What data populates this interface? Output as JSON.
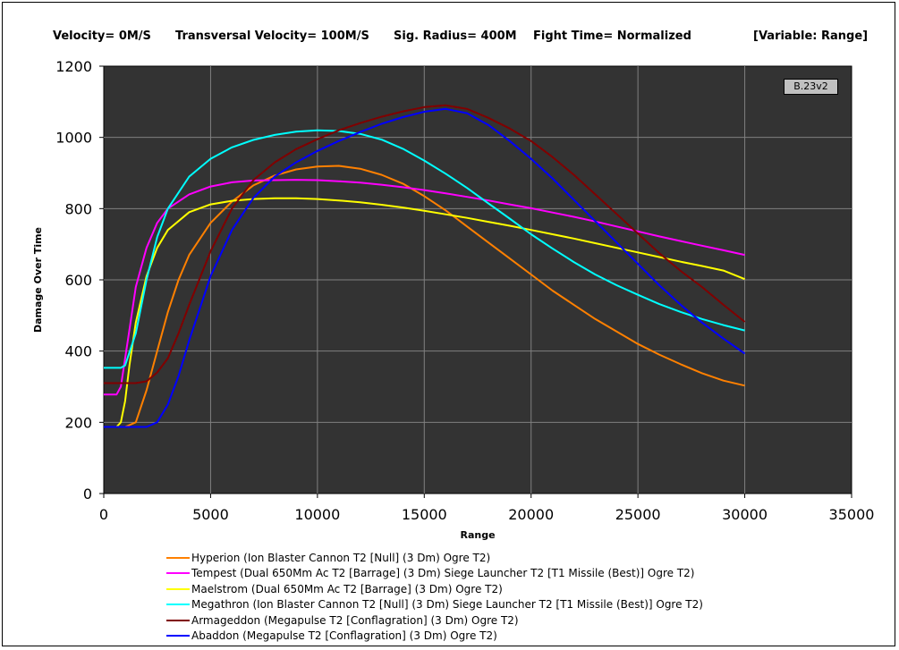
{
  "header": {
    "velocity": "Velocity= 0M/S",
    "transversal": "Transversal Velocity= 100M/S",
    "sig_radius": "Sig. Radius= 400M",
    "fight_time": "Fight Time= Normalized",
    "variable": "[Variable: Range]"
  },
  "version_badge": "B.23v2",
  "chart_data": {
    "type": "line",
    "title": "",
    "xlabel": "Range",
    "ylabel": "Damage Over Time",
    "xlim": [
      0,
      35000
    ],
    "ylim": [
      0,
      1200
    ],
    "x_ticks": [
      "0",
      "5000",
      "10000",
      "15000",
      "20000",
      "25000",
      "30000",
      "35000"
    ],
    "y_ticks": [
      "0",
      "200",
      "400",
      "600",
      "800",
      "1000",
      "1200"
    ],
    "grid": true,
    "plot_background": "#333333",
    "legend_position": "bottom",
    "series": [
      {
        "name": "Hyperion (Ion Blaster Cannon T2 [Null] (3 Dm) Ogre T2)",
        "color": "#ff8000",
        "points": [
          [
            0,
            187
          ],
          [
            1000,
            187
          ],
          [
            1500,
            200
          ],
          [
            2000,
            290
          ],
          [
            2500,
            400
          ],
          [
            3000,
            510
          ],
          [
            3500,
            600
          ],
          [
            4000,
            670
          ],
          [
            5000,
            760
          ],
          [
            6000,
            820
          ],
          [
            7000,
            865
          ],
          [
            8000,
            893
          ],
          [
            9000,
            910
          ],
          [
            10000,
            918
          ],
          [
            11000,
            920
          ],
          [
            12000,
            912
          ],
          [
            13000,
            895
          ],
          [
            14000,
            870
          ],
          [
            15000,
            835
          ],
          [
            16000,
            795
          ],
          [
            17000,
            750
          ],
          [
            18000,
            705
          ],
          [
            19000,
            660
          ],
          [
            20000,
            615
          ],
          [
            21000,
            570
          ],
          [
            22000,
            530
          ],
          [
            23000,
            490
          ],
          [
            24000,
            455
          ],
          [
            25000,
            420
          ],
          [
            26000,
            390
          ],
          [
            27000,
            363
          ],
          [
            28000,
            338
          ],
          [
            29000,
            317
          ],
          [
            30000,
            303
          ]
        ]
      },
      {
        "name": "Tempest (Dual 650Mm Ac T2 [Barrage] (3 Dm) Siege Launcher T2 [T1 Missile (Best)] Ogre T2)",
        "color": "#ff00ff",
        "points": [
          [
            0,
            278
          ],
          [
            600,
            278
          ],
          [
            800,
            300
          ],
          [
            1000,
            380
          ],
          [
            1200,
            460
          ],
          [
            1500,
            580
          ],
          [
            2000,
            690
          ],
          [
            2500,
            760
          ],
          [
            3000,
            800
          ],
          [
            4000,
            840
          ],
          [
            5000,
            862
          ],
          [
            6000,
            874
          ],
          [
            7000,
            879
          ],
          [
            8000,
            880
          ],
          [
            9000,
            881
          ],
          [
            10000,
            880
          ],
          [
            11000,
            877
          ],
          [
            12000,
            873
          ],
          [
            13000,
            867
          ],
          [
            14000,
            860
          ],
          [
            15000,
            852
          ],
          [
            16000,
            843
          ],
          [
            17000,
            833
          ],
          [
            18000,
            823
          ],
          [
            19000,
            812
          ],
          [
            20000,
            801
          ],
          [
            21000,
            789
          ],
          [
            22000,
            777
          ],
          [
            23000,
            764
          ],
          [
            24000,
            750
          ],
          [
            25000,
            736
          ],
          [
            26000,
            722
          ],
          [
            27000,
            709
          ],
          [
            28000,
            696
          ],
          [
            29000,
            683
          ],
          [
            30000,
            670
          ]
        ]
      },
      {
        "name": "Maelstrom (Dual 650Mm Ac T2 [Barrage] (3 Dm) Ogre T2)",
        "color": "#ffff00",
        "points": [
          [
            0,
            187
          ],
          [
            600,
            187
          ],
          [
            800,
            200
          ],
          [
            1000,
            260
          ],
          [
            1200,
            360
          ],
          [
            1500,
            480
          ],
          [
            2000,
            610
          ],
          [
            2500,
            690
          ],
          [
            3000,
            740
          ],
          [
            4000,
            790
          ],
          [
            5000,
            812
          ],
          [
            6000,
            822
          ],
          [
            7000,
            827
          ],
          [
            8000,
            829
          ],
          [
            9000,
            829
          ],
          [
            10000,
            827
          ],
          [
            11000,
            823
          ],
          [
            12000,
            818
          ],
          [
            13000,
            811
          ],
          [
            14000,
            803
          ],
          [
            15000,
            794
          ],
          [
            16000,
            784
          ],
          [
            17000,
            774
          ],
          [
            18000,
            763
          ],
          [
            19000,
            752
          ],
          [
            20000,
            740
          ],
          [
            21000,
            728
          ],
          [
            22000,
            716
          ],
          [
            23000,
            703
          ],
          [
            24000,
            690
          ],
          [
            25000,
            677
          ],
          [
            26000,
            664
          ],
          [
            27000,
            651
          ],
          [
            28000,
            639
          ],
          [
            29000,
            626
          ],
          [
            30000,
            602
          ]
        ]
      },
      {
        "name": "Megathron (Ion Blaster Cannon T2 [Null] (3 Dm) Siege Launcher T2 [T1 Missile (Best)] Ogre T2)",
        "color": "#00ffff",
        "points": [
          [
            0,
            353
          ],
          [
            800,
            353
          ],
          [
            1000,
            360
          ],
          [
            1500,
            450
          ],
          [
            2000,
            600
          ],
          [
            2500,
            720
          ],
          [
            3000,
            800
          ],
          [
            4000,
            890
          ],
          [
            5000,
            940
          ],
          [
            6000,
            972
          ],
          [
            7000,
            993
          ],
          [
            8000,
            1007
          ],
          [
            9000,
            1016
          ],
          [
            10000,
            1020
          ],
          [
            11000,
            1018
          ],
          [
            12000,
            1010
          ],
          [
            13000,
            994
          ],
          [
            14000,
            968
          ],
          [
            15000,
            935
          ],
          [
            16000,
            898
          ],
          [
            17000,
            858
          ],
          [
            18000,
            815
          ],
          [
            19000,
            772
          ],
          [
            20000,
            728
          ],
          [
            21000,
            688
          ],
          [
            22000,
            650
          ],
          [
            23000,
            615
          ],
          [
            24000,
            585
          ],
          [
            25000,
            558
          ],
          [
            26000,
            532
          ],
          [
            27000,
            510
          ],
          [
            28000,
            490
          ],
          [
            29000,
            473
          ],
          [
            30000,
            458
          ]
        ]
      },
      {
        "name": "Armageddon (Megapulse T2 [Conflagration] (3 Dm) Ogre T2)",
        "color": "#800000",
        "points": [
          [
            0,
            310
          ],
          [
            1500,
            310
          ],
          [
            2000,
            315
          ],
          [
            2500,
            340
          ],
          [
            3000,
            380
          ],
          [
            3500,
            450
          ],
          [
            4000,
            530
          ],
          [
            5000,
            680
          ],
          [
            6000,
            800
          ],
          [
            7000,
            880
          ],
          [
            8000,
            930
          ],
          [
            9000,
            967
          ],
          [
            10000,
            995
          ],
          [
            11000,
            1020
          ],
          [
            12000,
            1040
          ],
          [
            13000,
            1058
          ],
          [
            14000,
            1073
          ],
          [
            15000,
            1085
          ],
          [
            16000,
            1090
          ],
          [
            17000,
            1080
          ],
          [
            18000,
            1055
          ],
          [
            19000,
            1025
          ],
          [
            20000,
            990
          ],
          [
            21000,
            945
          ],
          [
            22000,
            895
          ],
          [
            23000,
            840
          ],
          [
            24000,
            785
          ],
          [
            25000,
            730
          ],
          [
            26000,
            675
          ],
          [
            27000,
            625
          ],
          [
            28000,
            580
          ],
          [
            29000,
            530
          ],
          [
            30000,
            482
          ]
        ]
      },
      {
        "name": "Abaddon (Megapulse T2 [Conflagration] (3 Dm) Ogre T2)",
        "color": "#0000ff",
        "points": [
          [
            0,
            187
          ],
          [
            2000,
            187
          ],
          [
            2500,
            200
          ],
          [
            3000,
            250
          ],
          [
            3500,
            330
          ],
          [
            4000,
            430
          ],
          [
            5000,
            610
          ],
          [
            6000,
            740
          ],
          [
            7000,
            830
          ],
          [
            8000,
            890
          ],
          [
            9000,
            930
          ],
          [
            10000,
            962
          ],
          [
            11000,
            990
          ],
          [
            12000,
            1015
          ],
          [
            13000,
            1038
          ],
          [
            14000,
            1057
          ],
          [
            15000,
            1072
          ],
          [
            16000,
            1080
          ],
          [
            17000,
            1068
          ],
          [
            18000,
            1035
          ],
          [
            19000,
            990
          ],
          [
            20000,
            940
          ],
          [
            21000,
            885
          ],
          [
            22000,
            825
          ],
          [
            23000,
            765
          ],
          [
            24000,
            705
          ],
          [
            25000,
            645
          ],
          [
            26000,
            585
          ],
          [
            27000,
            530
          ],
          [
            28000,
            480
          ],
          [
            29000,
            435
          ],
          [
            30000,
            393
          ]
        ]
      }
    ]
  }
}
